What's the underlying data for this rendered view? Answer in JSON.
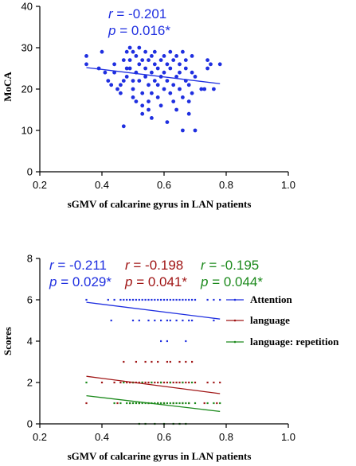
{
  "chart_data": [
    {
      "type": "scatter",
      "xlabel": "sGMV of calcarine gyrus in LAN patients",
      "ylabel": "MoCA",
      "xlim": [
        0.2,
        1.0
      ],
      "ylim": [
        0,
        40
      ],
      "x_ticks": [
        "0.2",
        "0.4",
        "0.6",
        "0.8",
        "1.0"
      ],
      "y_ticks": [
        "0",
        "10",
        "20",
        "30",
        "40"
      ],
      "color": "#1f2fe0",
      "stats": {
        "r_label": "r",
        "r_value": " = -0.201",
        "p_label": "p",
        "p_value": " = 0.016*"
      },
      "fit_line": {
        "x": [
          0.35,
          0.78
        ],
        "y": [
          25.2,
          21.3
        ]
      },
      "points": [
        [
          0.35,
          28
        ],
        [
          0.35,
          26
        ],
        [
          0.39,
          25
        ],
        [
          0.4,
          29
        ],
        [
          0.41,
          24
        ],
        [
          0.42,
          22
        ],
        [
          0.43,
          21
        ],
        [
          0.44,
          26
        ],
        [
          0.44,
          24
        ],
        [
          0.45,
          20
        ],
        [
          0.46,
          21
        ],
        [
          0.46,
          19
        ],
        [
          0.47,
          27
        ],
        [
          0.47,
          22
        ],
        [
          0.47,
          11
        ],
        [
          0.48,
          25
        ],
        [
          0.48,
          23
        ],
        [
          0.48,
          29
        ],
        [
          0.49,
          30
        ],
        [
          0.49,
          27
        ],
        [
          0.49,
          25
        ],
        [
          0.5,
          29
        ],
        [
          0.5,
          22
        ],
        [
          0.5,
          20
        ],
        [
          0.5,
          18
        ],
        [
          0.51,
          24
        ],
        [
          0.51,
          17
        ],
        [
          0.51,
          28
        ],
        [
          0.52,
          30
        ],
        [
          0.52,
          26
        ],
        [
          0.52,
          22
        ],
        [
          0.53,
          27
        ],
        [
          0.53,
          19
        ],
        [
          0.53,
          16
        ],
        [
          0.53,
          14
        ],
        [
          0.54,
          25
        ],
        [
          0.54,
          29
        ],
        [
          0.54,
          23
        ],
        [
          0.55,
          21
        ],
        [
          0.55,
          27
        ],
        [
          0.55,
          17
        ],
        [
          0.55,
          15
        ],
        [
          0.56,
          28
        ],
        [
          0.56,
          24
        ],
        [
          0.56,
          19
        ],
        [
          0.56,
          13
        ],
        [
          0.57,
          26
        ],
        [
          0.57,
          22
        ],
        [
          0.57,
          29
        ],
        [
          0.58,
          21
        ],
        [
          0.58,
          25
        ],
        [
          0.58,
          18
        ],
        [
          0.59,
          27
        ],
        [
          0.59,
          23
        ],
        [
          0.59,
          16
        ],
        [
          0.6,
          28
        ],
        [
          0.6,
          20
        ],
        [
          0.6,
          24
        ],
        [
          0.61,
          22
        ],
        [
          0.61,
          26
        ],
        [
          0.61,
          12
        ],
        [
          0.62,
          29
        ],
        [
          0.62,
          19
        ],
        [
          0.62,
          25
        ],
        [
          0.63,
          27
        ],
        [
          0.63,
          21
        ],
        [
          0.63,
          17
        ],
        [
          0.64,
          23
        ],
        [
          0.64,
          28
        ],
        [
          0.64,
          15
        ],
        [
          0.65,
          26
        ],
        [
          0.65,
          20
        ],
        [
          0.65,
          24
        ],
        [
          0.66,
          29
        ],
        [
          0.66,
          18
        ],
        [
          0.66,
          10
        ],
        [
          0.67,
          22
        ],
        [
          0.67,
          27
        ],
        [
          0.67,
          25
        ],
        [
          0.68,
          21
        ],
        [
          0.68,
          14
        ],
        [
          0.68,
          17
        ],
        [
          0.69,
          24
        ],
        [
          0.69,
          28
        ],
        [
          0.69,
          19
        ],
        [
          0.7,
          10
        ],
        [
          0.7,
          23
        ],
        [
          0.72,
          20
        ],
        [
          0.73,
          20
        ],
        [
          0.74,
          27
        ],
        [
          0.74,
          25
        ],
        [
          0.75,
          26
        ],
        [
          0.76,
          20
        ],
        [
          0.78,
          26
        ]
      ]
    },
    {
      "type": "scatter",
      "xlabel": "sGMV of calcarine gyrus in LAN patients",
      "ylabel": "Scores",
      "xlim": [
        0.2,
        1.0
      ],
      "ylim": [
        0,
        8
      ],
      "x_ticks": [
        "0.2",
        "0.4",
        "0.6",
        "0.8",
        "1.0"
      ],
      "y_ticks": [
        "0",
        "2",
        "4",
        "6",
        "8"
      ],
      "series": [
        {
          "name": "Attention",
          "color": "#1f2fe0",
          "stats": {
            "r_label": "r",
            "r_value": " = -0.211",
            "p_label": "p",
            "p_value": " = 0.029*"
          },
          "fit_line": {
            "x": [
              0.35,
              0.78
            ],
            "y": [
              5.88,
              5.07
            ]
          },
          "points": [
            [
              0.35,
              6
            ],
            [
              0.42,
              6
            ],
            [
              0.44,
              6
            ],
            [
              0.46,
              6
            ],
            [
              0.47,
              6
            ],
            [
              0.48,
              6
            ],
            [
              0.49,
              6
            ],
            [
              0.5,
              6
            ],
            [
              0.51,
              6
            ],
            [
              0.52,
              6
            ],
            [
              0.53,
              6
            ],
            [
              0.54,
              6
            ],
            [
              0.55,
              6
            ],
            [
              0.56,
              6
            ],
            [
              0.57,
              6
            ],
            [
              0.58,
              6
            ],
            [
              0.59,
              6
            ],
            [
              0.6,
              6
            ],
            [
              0.61,
              6
            ],
            [
              0.62,
              6
            ],
            [
              0.63,
              6
            ],
            [
              0.64,
              6
            ],
            [
              0.65,
              6
            ],
            [
              0.66,
              6
            ],
            [
              0.67,
              6
            ],
            [
              0.68,
              6
            ],
            [
              0.69,
              6
            ],
            [
              0.7,
              6
            ],
            [
              0.74,
              6
            ],
            [
              0.76,
              6
            ],
            [
              0.78,
              6
            ],
            [
              0.43,
              5
            ],
            [
              0.5,
              5
            ],
            [
              0.52,
              5
            ],
            [
              0.55,
              5
            ],
            [
              0.57,
              5
            ],
            [
              0.59,
              5
            ],
            [
              0.61,
              5
            ],
            [
              0.62,
              5
            ],
            [
              0.64,
              5
            ],
            [
              0.66,
              5
            ],
            [
              0.68,
              5
            ],
            [
              0.69,
              5
            ],
            [
              0.76,
              5
            ],
            [
              0.59,
              4
            ],
            [
              0.61,
              4
            ],
            [
              0.67,
              4
            ]
          ]
        },
        {
          "name": "language",
          "color": "#a01616",
          "stats": {
            "r_label": "r",
            "r_value": " = -0.198",
            "p_label": "p",
            "p_value": " = 0.041*"
          },
          "fit_line": {
            "x": [
              0.35,
              0.78
            ],
            "y": [
              2.3,
              1.46
            ]
          },
          "points": [
            [
              0.47,
              3
            ],
            [
              0.51,
              3
            ],
            [
              0.54,
              3
            ],
            [
              0.56,
              3
            ],
            [
              0.58,
              3
            ],
            [
              0.61,
              3
            ],
            [
              0.62,
              3
            ],
            [
              0.65,
              3
            ],
            [
              0.67,
              3
            ],
            [
              0.69,
              3
            ],
            [
              0.4,
              2
            ],
            [
              0.44,
              2
            ],
            [
              0.46,
              2
            ],
            [
              0.48,
              2
            ],
            [
              0.49,
              2
            ],
            [
              0.5,
              2
            ],
            [
              0.51,
              2
            ],
            [
              0.52,
              2
            ],
            [
              0.53,
              2
            ],
            [
              0.54,
              2
            ],
            [
              0.55,
              2
            ],
            [
              0.56,
              2
            ],
            [
              0.57,
              2
            ],
            [
              0.58,
              2
            ],
            [
              0.59,
              2
            ],
            [
              0.6,
              2
            ],
            [
              0.61,
              2
            ],
            [
              0.62,
              2
            ],
            [
              0.63,
              2
            ],
            [
              0.64,
              2
            ],
            [
              0.65,
              2
            ],
            [
              0.66,
              2
            ],
            [
              0.67,
              2
            ],
            [
              0.68,
              2
            ],
            [
              0.7,
              2
            ],
            [
              0.74,
              2
            ],
            [
              0.76,
              2
            ],
            [
              0.78,
              2
            ],
            [
              0.35,
              1
            ],
            [
              0.45,
              1
            ],
            [
              0.49,
              1
            ],
            [
              0.52,
              1
            ],
            [
              0.55,
              1
            ],
            [
              0.58,
              1
            ],
            [
              0.6,
              1
            ],
            [
              0.63,
              1
            ],
            [
              0.66,
              1
            ],
            [
              0.68,
              1
            ],
            [
              0.73,
              1
            ],
            [
              0.77,
              1
            ]
          ]
        },
        {
          "name": "language: repetition",
          "color": "#1c8a1c",
          "stats": {
            "r_label": "r",
            "r_value": " = -0.195",
            "p_label": "p",
            "p_value": " = 0.044*"
          },
          "fit_line": {
            "x": [
              0.35,
              0.78
            ],
            "y": [
              1.36,
              0.6
            ]
          },
          "points": [
            [
              0.35,
              2
            ],
            [
              0.47,
              2
            ],
            [
              0.5,
              2
            ],
            [
              0.53,
              2
            ],
            [
              0.56,
              2
            ],
            [
              0.59,
              2
            ],
            [
              0.62,
              2
            ],
            [
              0.66,
              2
            ],
            [
              0.69,
              2
            ],
            [
              0.44,
              1
            ],
            [
              0.46,
              1
            ],
            [
              0.48,
              1
            ],
            [
              0.49,
              1
            ],
            [
              0.5,
              1
            ],
            [
              0.51,
              1
            ],
            [
              0.52,
              1
            ],
            [
              0.53,
              1
            ],
            [
              0.54,
              1
            ],
            [
              0.55,
              1
            ],
            [
              0.56,
              1
            ],
            [
              0.57,
              1
            ],
            [
              0.58,
              1
            ],
            [
              0.59,
              1
            ],
            [
              0.6,
              1
            ],
            [
              0.61,
              1
            ],
            [
              0.62,
              1
            ],
            [
              0.63,
              1
            ],
            [
              0.64,
              1
            ],
            [
              0.65,
              1
            ],
            [
              0.66,
              1
            ],
            [
              0.67,
              1
            ],
            [
              0.68,
              1
            ],
            [
              0.7,
              1
            ],
            [
              0.74,
              1
            ],
            [
              0.76,
              1
            ],
            [
              0.78,
              1
            ],
            [
              0.52,
              0
            ],
            [
              0.54,
              0
            ],
            [
              0.57,
              0
            ],
            [
              0.6,
              0
            ],
            [
              0.63,
              0
            ],
            [
              0.65,
              0
            ],
            [
              0.67,
              0
            ]
          ]
        }
      ]
    }
  ]
}
